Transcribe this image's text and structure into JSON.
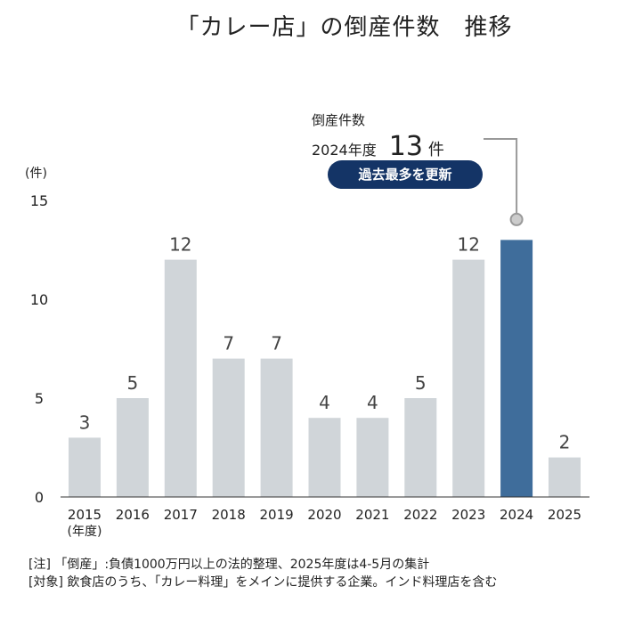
{
  "title": "「カレー店」の倒産件数　推移",
  "callout": {
    "label": "倒産件数",
    "year": "2024年度",
    "value": "13",
    "unit": "件",
    "badge": "過去最多を更新"
  },
  "notes": [
    "[注] 「倒産」:負債1000万円以上の法的整理、2025年度は4-5月の集計",
    "[対象] 飲食店のうち、「カレー料理」をメインに提供する企業。インド料理店を含む"
  ],
  "chart_data": {
    "type": "bar",
    "title": "「カレー店」の倒産件数　推移",
    "ylabel": "(件)",
    "xlabel": "(年度)",
    "ylim": [
      0,
      15
    ],
    "yticks": [
      0,
      5,
      10,
      15
    ],
    "grid": false,
    "categories": [
      "2015",
      "2016",
      "2017",
      "2018",
      "2019",
      "2020",
      "2021",
      "2022",
      "2023",
      "2024",
      "2025"
    ],
    "values": [
      3,
      5,
      12,
      7,
      7,
      4,
      4,
      5,
      12,
      13,
      2
    ],
    "colors": {
      "default": "#d0d5d9",
      "highlight": "#3f6d9b",
      "badge": "#143466"
    },
    "highlight": "2024"
  }
}
